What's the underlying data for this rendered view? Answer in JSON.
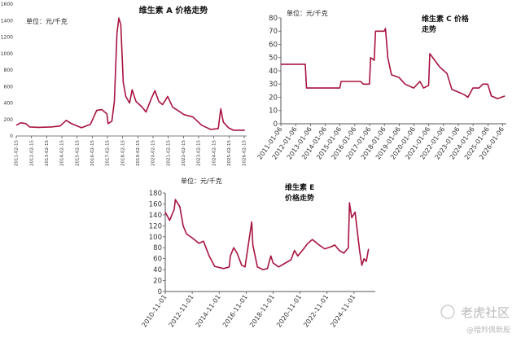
{
  "chart_data": [
    {
      "type": "line",
      "id": "A",
      "title": "维生素 A 价格走势",
      "unit_label": "单位：元/千克",
      "color": "#a8133f",
      "ylim": [
        0,
        1600
      ],
      "yticks": [
        0,
        200,
        400,
        600,
        800,
        1000,
        1200,
        1400,
        1600
      ],
      "xlim": [
        "2011-02-15",
        "2026-04-15"
      ],
      "xticks": [
        "2011-02-15",
        "2012-02-15",
        "2013-02-15",
        "2014-02-15",
        "2015-02-15",
        "2016-02-15",
        "2017-02-15",
        "2018-02-15",
        "2019-02-15",
        "2020-02-15",
        "2021-02-15",
        "2022-02-15",
        "2023-02-15",
        "2024-02-15",
        "2025-02-15",
        "2026-02-15"
      ],
      "points": [
        [
          "2011-02-15",
          130
        ],
        [
          "2011-06-01",
          160
        ],
        [
          "2011-10-01",
          150
        ],
        [
          "2012-01-01",
          110
        ],
        [
          "2012-08-01",
          105
        ],
        [
          "2013-06-01",
          110
        ],
        [
          "2014-01-01",
          120
        ],
        [
          "2014-06-01",
          190
        ],
        [
          "2014-10-01",
          150
        ],
        [
          "2015-06-01",
          100
        ],
        [
          "2016-01-01",
          140
        ],
        [
          "2016-06-01",
          310
        ],
        [
          "2016-10-01",
          320
        ],
        [
          "2017-02-01",
          270
        ],
        [
          "2017-03-01",
          150
        ],
        [
          "2017-06-01",
          180
        ],
        [
          "2017-08-01",
          420
        ],
        [
          "2017-10-01",
          1250
        ],
        [
          "2017-11-15",
          1430
        ],
        [
          "2018-01-01",
          1350
        ],
        [
          "2018-03-01",
          650
        ],
        [
          "2018-05-01",
          480
        ],
        [
          "2018-08-01",
          400
        ],
        [
          "2018-10-01",
          560
        ],
        [
          "2019-01-01",
          420
        ],
        [
          "2019-06-01",
          350
        ],
        [
          "2019-09-01",
          290
        ],
        [
          "2020-01-01",
          450
        ],
        [
          "2020-04-01",
          550
        ],
        [
          "2020-07-01",
          420
        ],
        [
          "2020-10-01",
          380
        ],
        [
          "2021-02-01",
          480
        ],
        [
          "2021-06-01",
          350
        ],
        [
          "2021-10-01",
          310
        ],
        [
          "2022-03-01",
          260
        ],
        [
          "2022-10-01",
          230
        ],
        [
          "2023-05-01",
          130
        ],
        [
          "2023-12-01",
          80
        ],
        [
          "2024-06-01",
          90
        ],
        [
          "2024-08-01",
          330
        ],
        [
          "2024-10-01",
          170
        ],
        [
          "2025-02-01",
          100
        ],
        [
          "2025-06-01",
          70
        ],
        [
          "2026-03-01",
          70
        ]
      ]
    },
    {
      "type": "line",
      "id": "C",
      "title_line1": "维生素 C 价格",
      "title_line2": "走势",
      "unit_label": "单位：元/千克",
      "color": "#a8133f",
      "ylim": [
        0,
        80
      ],
      "yticks": [
        0,
        10,
        20,
        30,
        40,
        50,
        60,
        70,
        80
      ],
      "xlim": [
        "2011-01-06",
        "2026-04-06"
      ],
      "xticks": [
        "2011-01-06",
        "2012-01-06",
        "2013-01-06",
        "2014-01-06",
        "2015-01-06",
        "2016-01-06",
        "2017-01-06",
        "2018-01-06",
        "2019-01-06",
        "2020-01-06",
        "2021-01-06",
        "2022-01-06",
        "2023-01-06",
        "2024-01-06",
        "2025-01-06",
        "2026-01-06"
      ],
      "points": [
        [
          "2011-01-06",
          45
        ],
        [
          "2012-09-01",
          45
        ],
        [
          "2012-10-01",
          27
        ],
        [
          "2014-01-01",
          27
        ],
        [
          "2015-01-01",
          27
        ],
        [
          "2015-02-01",
          32
        ],
        [
          "2016-06-01",
          32
        ],
        [
          "2016-08-01",
          30
        ],
        [
          "2017-01-01",
          30
        ],
        [
          "2017-02-01",
          50
        ],
        [
          "2017-05-01",
          48
        ],
        [
          "2017-06-01",
          70
        ],
        [
          "2018-01-01",
          70
        ],
        [
          "2018-02-01",
          72
        ],
        [
          "2018-04-01",
          50
        ],
        [
          "2018-07-01",
          37
        ],
        [
          "2019-01-01",
          35
        ],
        [
          "2019-06-01",
          30
        ],
        [
          "2020-01-01",
          27
        ],
        [
          "2020-06-01",
          32
        ],
        [
          "2020-09-01",
          27
        ],
        [
          "2021-01-01",
          29
        ],
        [
          "2021-02-01",
          53
        ],
        [
          "2021-06-01",
          48
        ],
        [
          "2021-10-01",
          43
        ],
        [
          "2022-04-01",
          38
        ],
        [
          "2022-08-01",
          26
        ],
        [
          "2023-01-01",
          24
        ],
        [
          "2023-06-01",
          22
        ],
        [
          "2023-09-01",
          20
        ],
        [
          "2024-01-01",
          27
        ],
        [
          "2024-06-01",
          27
        ],
        [
          "2024-09-01",
          30
        ],
        [
          "2025-01-01",
          30
        ],
        [
          "2025-04-01",
          21
        ],
        [
          "2025-09-01",
          19
        ],
        [
          "2026-03-01",
          21
        ]
      ]
    },
    {
      "type": "line",
      "id": "E",
      "title_line1": "维生素 E",
      "title_line2": "价格走势",
      "unit_label": "单位：元/千克",
      "color": "#a8133f",
      "ylim": [
        0,
        180
      ],
      "yticks": [
        0,
        20,
        40,
        60,
        80,
        100,
        120,
        140,
        160,
        180
      ],
      "xlim": [
        "2010-11-01",
        "2026-06-01"
      ],
      "xticks": [
        "2010-11-01",
        "2012-11-01",
        "2014-11-01",
        "2016-11-01",
        "2018-11-01",
        "2020-11-01",
        "2022-11-01",
        "2024-11-01"
      ],
      "points": [
        [
          "2010-11-01",
          145
        ],
        [
          "2011-03-01",
          130
        ],
        [
          "2011-07-01",
          150
        ],
        [
          "2011-08-01",
          168
        ],
        [
          "2011-12-01",
          155
        ],
        [
          "2012-03-01",
          120
        ],
        [
          "2012-06-01",
          105
        ],
        [
          "2012-11-01",
          98
        ],
        [
          "2013-05-01",
          88
        ],
        [
          "2013-09-01",
          92
        ],
        [
          "2014-02-01",
          65
        ],
        [
          "2014-07-01",
          46
        ],
        [
          "2015-03-01",
          42
        ],
        [
          "2015-08-01",
          45
        ],
        [
          "2015-09-01",
          65
        ],
        [
          "2015-12-01",
          80
        ],
        [
          "2016-03-01",
          70
        ],
        [
          "2016-07-01",
          48
        ],
        [
          "2016-10-01",
          45
        ],
        [
          "2017-04-01",
          127
        ],
        [
          "2017-05-01",
          85
        ],
        [
          "2017-09-01",
          45
        ],
        [
          "2018-02-01",
          40
        ],
        [
          "2018-06-01",
          42
        ],
        [
          "2018-09-01",
          65
        ],
        [
          "2018-11-01",
          52
        ],
        [
          "2019-04-01",
          45
        ],
        [
          "2019-10-01",
          52
        ],
        [
          "2020-03-01",
          58
        ],
        [
          "2020-06-01",
          75
        ],
        [
          "2020-09-01",
          65
        ],
        [
          "2021-01-01",
          75
        ],
        [
          "2021-06-01",
          88
        ],
        [
          "2021-10-01",
          95
        ],
        [
          "2022-04-01",
          85
        ],
        [
          "2022-09-01",
          78
        ],
        [
          "2023-03-01",
          82
        ],
        [
          "2023-06-01",
          85
        ],
        [
          "2023-10-01",
          75
        ],
        [
          "2024-02-01",
          70
        ],
        [
          "2024-06-01",
          80
        ],
        [
          "2024-07-01",
          162
        ],
        [
          "2024-09-01",
          135
        ],
        [
          "2024-12-01",
          145
        ],
        [
          "2025-04-01",
          75
        ],
        [
          "2025-06-01",
          48
        ],
        [
          "2025-08-01",
          60
        ],
        [
          "2025-10-01",
          55
        ],
        [
          "2025-12-01",
          78
        ]
      ]
    }
  ],
  "watermark": {
    "brand": "老虎社区",
    "handle": "@暗羚佩新股"
  }
}
